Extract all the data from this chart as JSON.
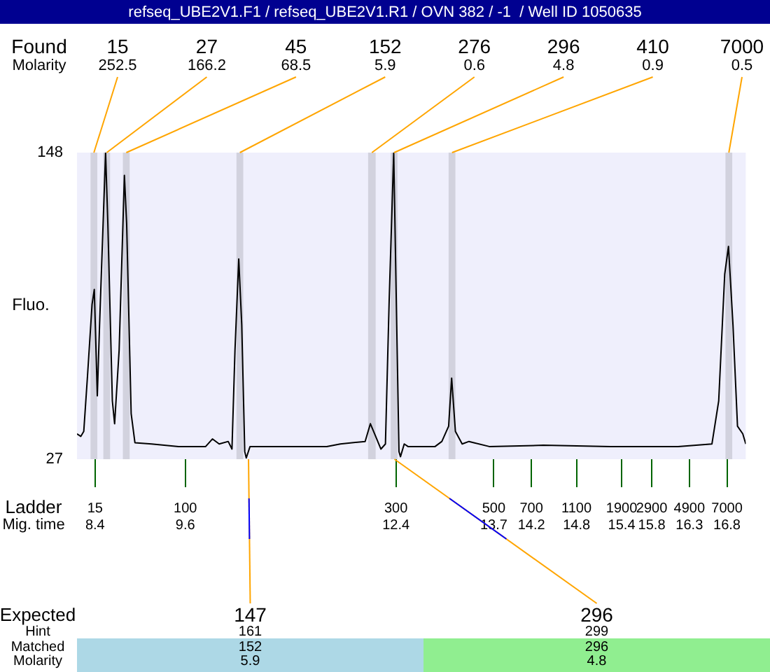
{
  "chart_data": {
    "type": "line",
    "title": "refseq_UBE2V1.F1 / refseq_UBE2V1.R1 / OVN 382 / -1  / Well ID 1050635",
    "ylabel": "Fluo.",
    "x": [
      8.16,
      8.21,
      8.25,
      8.3,
      8.36,
      8.39,
      8.43,
      8.46,
      8.54,
      8.57,
      8.63,
      8.66,
      8.72,
      8.79,
      8.82,
      8.88,
      8.93,
      9.15,
      9.51,
      9.87,
      9.96,
      10.05,
      10.17,
      10.22,
      10.26,
      10.31,
      10.35,
      10.39,
      10.41,
      10.46,
      10.76,
      11.48,
      11.66,
      11.99,
      12.06,
      12.13,
      12.2,
      12.26,
      12.31,
      12.37,
      12.41,
      12.44,
      12.46,
      12.51,
      12.56,
      12.92,
      13.01,
      13.1,
      13.14,
      13.19,
      13.28,
      13.37,
      13.64,
      14.36,
      15.25,
      16.15,
      16.6,
      16.69,
      16.77,
      16.82,
      16.88,
      16.94,
      17.01,
      17.05
    ],
    "values": [
      37,
      36,
      38,
      60,
      88,
      94,
      52,
      80,
      148,
      120,
      50,
      41,
      70,
      139,
      120,
      45,
      33.5,
      33,
      32,
      32,
      35,
      33,
      34,
      31,
      70,
      106,
      80,
      30,
      27.5,
      32,
      32,
      32,
      33,
      34,
      41,
      36,
      31,
      33,
      90,
      148,
      80,
      30,
      28,
      33,
      32,
      32,
      34,
      40,
      59,
      38,
      33,
      34,
      32,
      32.5,
      32,
      32,
      33,
      50,
      100,
      111,
      80,
      40,
      37,
      33
    ],
    "color": "#000000",
    "xlim": [
      8.16,
      17.05
    ],
    "ylim": [
      27,
      148
    ],
    "yticks": [
      27,
      148
    ],
    "xticks": [
      8.4,
      9.6,
      12.4,
      13.7,
      14.2,
      14.8,
      15.4,
      15.8,
      16.3,
      16.8
    ],
    "grid": false,
    "legend": false,
    "marker": "none",
    "line_style": "solid",
    "bands": [
      {
        "axis": "x",
        "from": 8.34,
        "to": 8.43,
        "color": "#d2d2de"
      },
      {
        "axis": "x",
        "from": 8.51,
        "to": 8.6,
        "color": "#d2d2de"
      },
      {
        "axis": "x",
        "from": 8.77,
        "to": 8.86,
        "color": "#d2d2de"
      },
      {
        "axis": "x",
        "from": 10.28,
        "to": 10.37,
        "color": "#d2d2de"
      },
      {
        "axis": "x",
        "from": 12.03,
        "to": 12.13,
        "color": "#d2d2de"
      },
      {
        "axis": "x",
        "from": 12.33,
        "to": 12.42,
        "color": "#d2d2de"
      },
      {
        "axis": "x",
        "from": 13.1,
        "to": 13.19,
        "color": "#d2d2de"
      },
      {
        "axis": "x",
        "from": 16.78,
        "to": 16.87,
        "color": "#d2d2de"
      }
    ],
    "annotations": [
      "Found",
      "Molarity",
      "Ladder",
      "Mig. time",
      "Expected",
      "Hint",
      "Matched",
      "Molarity",
      {
        "text": "15",
        "x": 8.385,
        "y": 148
      },
      "252.5",
      {
        "text": "27",
        "x": 8.555,
        "y": 148
      },
      "166.2",
      {
        "text": "45",
        "x": 8.815,
        "y": 148
      },
      "68.5",
      {
        "text": "152",
        "x": 10.325,
        "y": 148
      },
      "5.9",
      {
        "text": "276",
        "x": 12.08,
        "y": 148
      },
      "0.6",
      {
        "text": "296",
        "x": 12.375,
        "y": 148
      },
      "4.8",
      {
        "text": "410",
        "x": 13.145,
        "y": 148
      },
      "0.9",
      {
        "text": "7000",
        "x": 16.825,
        "y": 148
      },
      "0.5",
      "15",
      "100",
      "300",
      "500",
      "700",
      "1100",
      "1900",
      "2900",
      "4900",
      "7000",
      {
        "text": "147",
        "x": 10.44,
        "y": 27
      },
      "161",
      "152",
      "5.9",
      {
        "text": "296",
        "x": 12.38,
        "y": 27
      },
      "299",
      "296",
      "4.8"
    ]
  }
}
